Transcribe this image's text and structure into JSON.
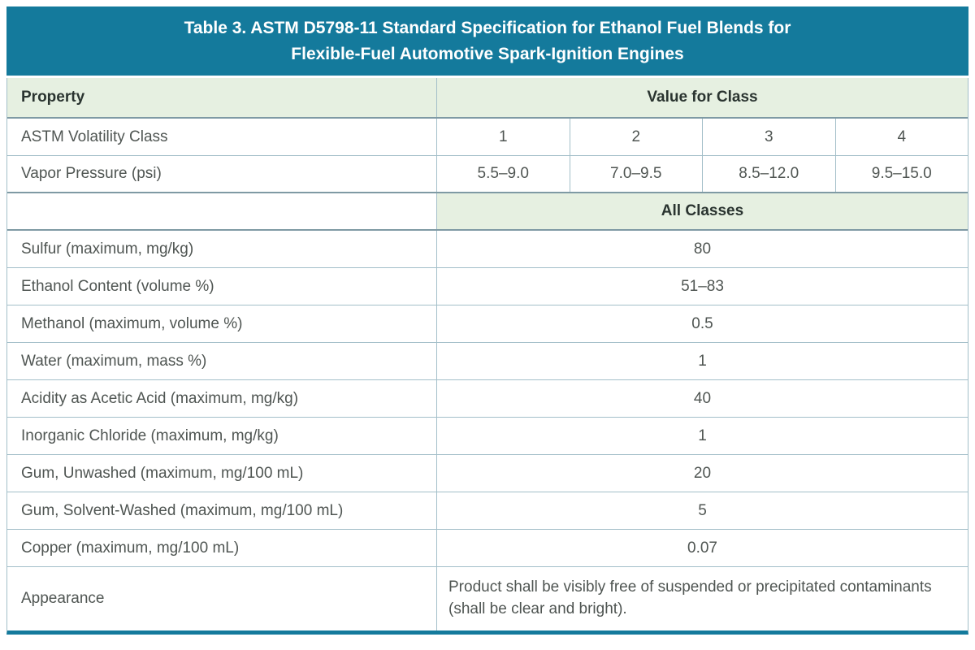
{
  "title": {
    "line1": "Table 3. ASTM D5798-11 Standard Specification for Ethanol Fuel Blends for",
    "line2": "Flexible-Fuel Automotive Spark-Ignition Engines"
  },
  "colors": {
    "banner_teal": "#147a9c",
    "header_green": "#e6f0e1",
    "border_light": "#a3bfc9",
    "border_dark": "#7f9aa4",
    "header_text": "#2a3430",
    "body_text": "#4f5552"
  },
  "table": {
    "property_header": "Property",
    "value_header": "Value for Class",
    "all_classes_header": "All Classes",
    "class_rows": [
      {
        "property": "ASTM Volatility Class",
        "values": [
          "1",
          "2",
          "3",
          "4"
        ]
      },
      {
        "property": "Vapor Pressure (psi)",
        "values": [
          "5.5–9.0",
          "7.0–9.5",
          "8.5–12.0",
          "9.5–15.0"
        ]
      }
    ],
    "single_rows": [
      {
        "property": "Sulfur (maximum, mg/kg)",
        "value": "80"
      },
      {
        "property": "Ethanol Content (volume %)",
        "value": "51–83"
      },
      {
        "property": "Methanol (maximum, volume %)",
        "value": "0.5"
      },
      {
        "property": "Water (maximum, mass %)",
        "value": "1"
      },
      {
        "property": "Acidity as Acetic Acid (maximum, mg/kg)",
        "value": "40"
      },
      {
        "property": "Inorganic Chloride (maximum, mg/kg)",
        "value": "1"
      },
      {
        "property": "Gum, Unwashed (maximum, mg/100 mL)",
        "value": "20"
      },
      {
        "property": "Gum, Solvent-Washed (maximum, mg/100 mL)",
        "value": "5"
      },
      {
        "property": "Copper (maximum, mg/100 mL)",
        "value": "0.07"
      }
    ],
    "appearance_row": {
      "property": "Appearance",
      "value": "Product shall be visibly free of suspended or precipitated contaminants (shall be clear and bright)."
    }
  }
}
